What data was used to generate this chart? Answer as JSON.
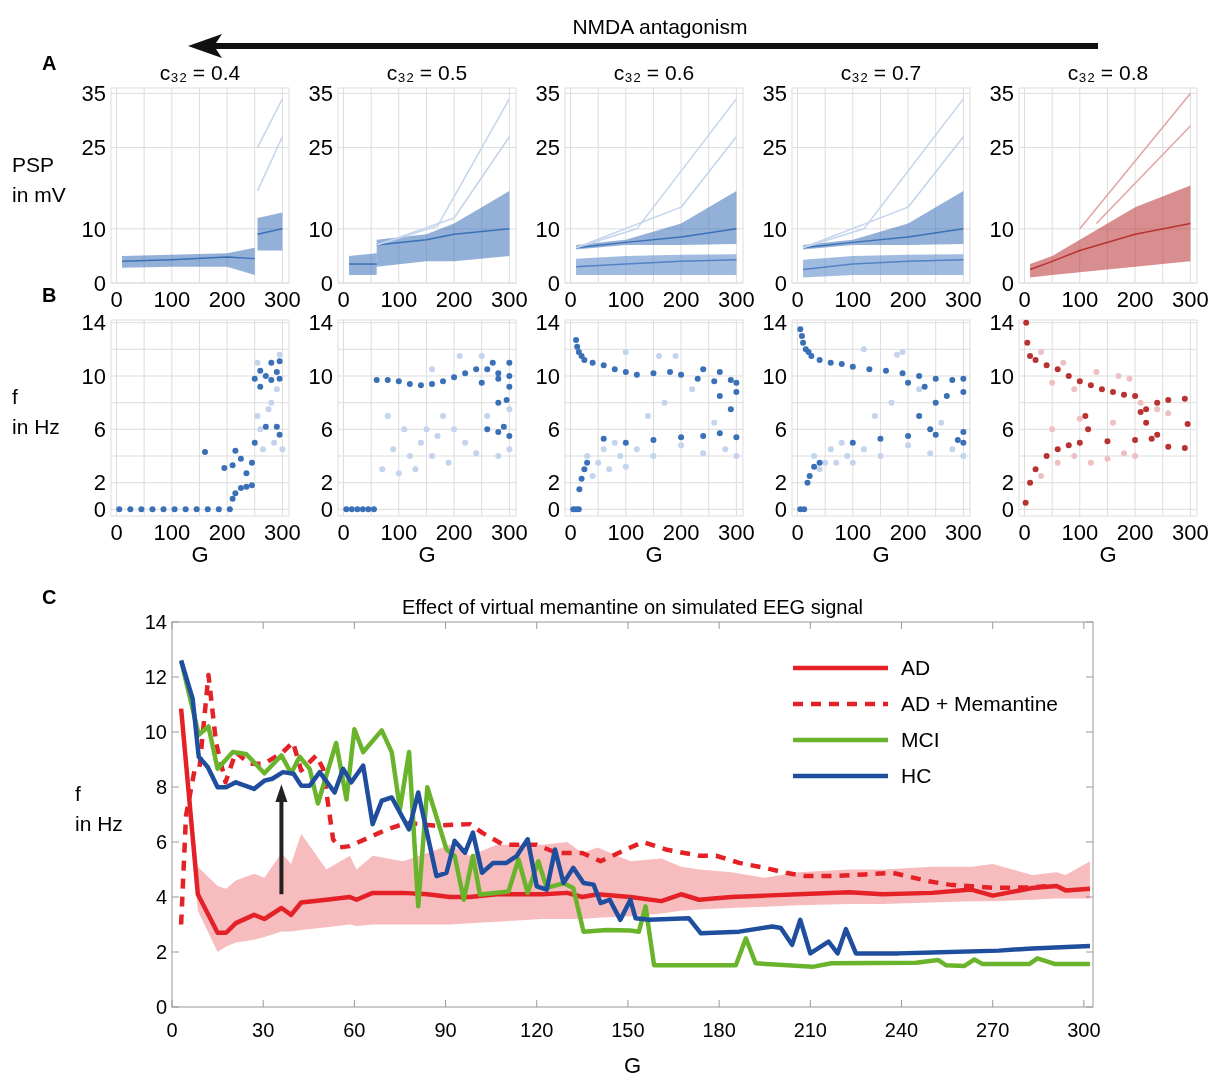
{
  "chart_data": [
    {
      "type": "line",
      "title": "c₃₂ = 0.4",
      "ylabel": "PSP in mV",
      "annotations": [
        "A",
        "NMDA antagonism"
      ],
      "xlim": [
        -10,
        312
      ],
      "ylim": [
        0,
        36
      ],
      "xticks": [
        0,
        {
          "value": 50,
          "label": null
        },
        100,
        {
          "value": 150,
          "label": null
        },
        200,
        {
          "value": 250,
          "label": null
        },
        300
      ],
      "yticks": [
        0,
        10,
        25,
        35
      ],
      "grid": true,
      "series": [
        {
          "color": "#3a70b8",
          "x": [
            10,
            100,
            200,
            250
          ],
          "values": [
            4,
            4.3,
            4.8,
            4.5
          ],
          "lower": [
            2.8,
            3,
            3,
            1.5
          ],
          "upper": [
            5,
            5.2,
            5.5,
            6.5
          ]
        },
        {
          "color": "#3a70b8",
          "x": [
            255,
            300
          ],
          "values": [
            9,
            10
          ],
          "lower": [
            6,
            6
          ],
          "upper": [
            12,
            13
          ]
        },
        {
          "color": "#c3d4ec",
          "x": [
            255,
            300
          ],
          "values": [
            25,
            34
          ]
        },
        {
          "color": "#c3d4ec",
          "x": [
            255,
            300
          ],
          "values": [
            17,
            27
          ]
        }
      ]
    },
    {
      "type": "line",
      "title": "c₃₂ = 0.5",
      "xlim": [
        -10,
        312
      ],
      "ylim": [
        0,
        36
      ],
      "xticks": [
        0,
        {
          "value": 50,
          "label": null
        },
        100,
        {
          "value": 150,
          "label": null
        },
        200,
        {
          "value": 250,
          "label": null
        },
        300
      ],
      "yticks": [
        0,
        10,
        25,
        35
      ],
      "grid": true,
      "series": [
        {
          "color": "#3a70b8",
          "x": [
            10,
            60
          ],
          "values": [
            3.5,
            3.5
          ],
          "lower": [
            1.5,
            1.5
          ],
          "upper": [
            5,
            5.5
          ]
        },
        {
          "color": "#3a70b8",
          "x": [
            60,
            150,
            200,
            300
          ],
          "values": [
            7,
            8,
            9,
            10
          ],
          "lower": [
            3,
            4,
            4,
            5
          ],
          "upper": [
            8,
            9,
            11,
            17
          ]
        },
        {
          "color": "#c3d4ec",
          "x": [
            60,
            170,
            300
          ],
          "values": [
            7,
            10.5,
            34
          ]
        },
        {
          "color": "#c3d4ec",
          "x": [
            60,
            200,
            300
          ],
          "values": [
            7,
            12,
            27
          ]
        }
      ]
    },
    {
      "type": "line",
      "title": "c₃₂ = 0.6",
      "xlim": [
        -10,
        312
      ],
      "ylim": [
        0,
        36
      ],
      "xticks": [
        0,
        {
          "value": 50,
          "label": null
        },
        100,
        {
          "value": 150,
          "label": null
        },
        200,
        {
          "value": 250,
          "label": null
        },
        300
      ],
      "yticks": [
        0,
        10,
        25,
        35
      ],
      "grid": true,
      "series": [
        {
          "color": "#3a70b8",
          "x": [
            10,
            100,
            200,
            300
          ],
          "values": [
            6.5,
            7.5,
            8.5,
            10
          ],
          "lower": [
            6.2,
            7,
            7,
            7.2
          ],
          "upper": [
            7,
            8,
            11,
            17
          ]
        },
        {
          "color": "#5283c6",
          "x": [
            10,
            100,
            200,
            300
          ],
          "values": [
            3,
            3.5,
            4,
            4.3
          ],
          "lower": [
            1.5,
            1.5,
            1.5,
            1.5
          ],
          "upper": [
            4.5,
            5,
            5.2,
            5.3
          ]
        },
        {
          "color": "#c3d4ec",
          "x": [
            10,
            120,
            300
          ],
          "values": [
            6.5,
            10,
            34
          ]
        },
        {
          "color": "#c3d4ec",
          "x": [
            10,
            200,
            300
          ],
          "values": [
            6.5,
            14,
            27
          ]
        }
      ]
    },
    {
      "type": "line",
      "title": "c₃₂ = 0.7",
      "xlim": [
        -10,
        312
      ],
      "ylim": [
        0,
        36
      ],
      "xticks": [
        0,
        {
          "value": 50,
          "label": null
        },
        100,
        {
          "value": 150,
          "label": null
        },
        200,
        {
          "value": 250,
          "label": null
        },
        300
      ],
      "yticks": [
        0,
        10,
        25,
        35
      ],
      "grid": true,
      "series": [
        {
          "color": "#3a70b8",
          "x": [
            10,
            100,
            200,
            300
          ],
          "values": [
            6.5,
            7.5,
            8.5,
            10
          ],
          "lower": [
            6.2,
            7,
            7,
            7.2
          ],
          "upper": [
            7,
            8,
            11,
            17
          ]
        },
        {
          "color": "#5283c6",
          "x": [
            10,
            100,
            200,
            300
          ],
          "values": [
            2.5,
            3.5,
            4,
            4.3
          ],
          "lower": [
            1,
            1.5,
            1.5,
            1.5
          ],
          "upper": [
            4.3,
            5,
            5.2,
            5.3
          ]
        },
        {
          "color": "#c3d4ec",
          "x": [
            10,
            120,
            300
          ],
          "values": [
            6.5,
            10,
            34
          ]
        },
        {
          "color": "#c3d4ec",
          "x": [
            10,
            200,
            300
          ],
          "values": [
            6.5,
            14,
            27
          ]
        }
      ]
    },
    {
      "type": "line",
      "title": "c₃₂ = 0.8",
      "xlim": [
        -10,
        312
      ],
      "ylim": [
        0,
        36
      ],
      "xticks": [
        0,
        {
          "value": 50,
          "label": null
        },
        100,
        {
          "value": 150,
          "label": null
        },
        200,
        {
          "value": 250,
          "label": null
        },
        300
      ],
      "yticks": [
        0,
        10,
        25,
        35
      ],
      "grid": true,
      "series": [
        {
          "color": "#b83232",
          "x": [
            10,
            50,
            100,
            200,
            300
          ],
          "values": [
            2.5,
            4,
            6,
            9,
            11
          ],
          "lower": [
            1,
            1.5,
            2,
            3,
            4
          ],
          "upper": [
            3.5,
            5,
            8,
            14,
            18
          ]
        },
        {
          "color": "#e2a3a3",
          "x": [
            100,
            300
          ],
          "values": [
            10,
            35
          ]
        },
        {
          "color": "#e2a3a3",
          "x": [
            130,
            300
          ],
          "values": [
            11,
            29
          ]
        }
      ]
    },
    {
      "type": "scatter",
      "xlabel": "G",
      "ylabel": "f in Hz",
      "annotations": [
        "B"
      ],
      "xlim": [
        -10,
        312
      ],
      "ylim": [
        -0.5,
        14.2
      ],
      "xticks": [
        0,
        {
          "value": 50,
          "label": null
        },
        100,
        {
          "value": 150,
          "label": null
        },
        200,
        {
          "value": 250,
          "label": null
        },
        300
      ],
      "yticks": [
        0,
        2,
        {
          "value": 4,
          "label": null
        },
        6,
        {
          "value": 8,
          "label": null
        },
        10,
        {
          "value": 12,
          "label": null
        },
        14
      ],
      "grid": true,
      "series": [
        {
          "color": "#c3d4ec",
          "x": [
            255,
            255,
            265,
            275,
            285,
            295,
            300,
            260,
            280,
            290
          ],
          "values": [
            11,
            7,
            4.5,
            7.5,
            5,
            11.6,
            4.5,
            6,
            8,
            9
          ]
        },
        {
          "color": "#3a70b8",
          "x": [
            5,
            25,
            45,
            65,
            85,
            105,
            125,
            145,
            165,
            185,
            205,
            160,
            195,
            210,
            210,
            215,
            215,
            225,
            225,
            235,
            235,
            245,
            245,
            250,
            250,
            260,
            260,
            270,
            270,
            280,
            280,
            290,
            290,
            295,
            295,
            295
          ],
          "values": [
            0,
            0,
            0,
            0,
            0,
            0,
            0,
            0,
            0,
            0,
            0,
            4.3,
            3.1,
            0.8,
            3.3,
            1.2,
            4.4,
            1.6,
            3.8,
            1.7,
            2.7,
            1.8,
            3.5,
            5,
            9.8,
            9.2,
            10.4,
            10,
            6.2,
            9.7,
            11,
            10.3,
            6.2,
            9.8,
            5.6,
            11.1
          ]
        }
      ]
    },
    {
      "type": "scatter",
      "xlabel": "G",
      "xlim": [
        -10,
        312
      ],
      "ylim": [
        -0.5,
        14.2
      ],
      "xticks": [
        0,
        {
          "value": 50,
          "label": null
        },
        100,
        {
          "value": 150,
          "label": null
        },
        200,
        {
          "value": 250,
          "label": null
        },
        300
      ],
      "yticks": [
        0,
        2,
        {
          "value": 4,
          "label": null
        },
        6,
        {
          "value": 8,
          "label": null
        },
        10,
        {
          "value": 12,
          "label": null
        },
        14
      ],
      "grid": true,
      "series": [
        {
          "color": "#c3d4ec",
          "x": [
            70,
            80,
            90,
            100,
            110,
            120,
            130,
            140,
            150,
            160,
            170,
            180,
            190,
            200,
            210,
            220,
            240,
            260,
            280,
            300,
            300,
            160,
            250
          ],
          "values": [
            3,
            7,
            4.5,
            2.7,
            6,
            4,
            3,
            5,
            6,
            4,
            5.5,
            7,
            3.5,
            6,
            11.5,
            5,
            4.2,
            7,
            4,
            4.5,
            7.5,
            10.5,
            11.5
          ]
        },
        {
          "color": "#3a70b8",
          "x": [
            5,
            15,
            25,
            35,
            45,
            55,
            60,
            80,
            100,
            120,
            140,
            160,
            180,
            200,
            220,
            240,
            260,
            280,
            300,
            250,
            280,
            300,
            300,
            270,
            280,
            295,
            260,
            280,
            300,
            290
          ],
          "values": [
            0,
            0,
            0,
            0,
            0,
            0,
            9.7,
            9.7,
            9.6,
            9.4,
            9.3,
            9.4,
            9.6,
            9.9,
            10.2,
            10.5,
            10.5,
            10.2,
            10,
            9.5,
            9.8,
            9.2,
            11,
            11,
            8,
            8.2,
            6,
            5.8,
            5.5,
            6.2
          ]
        }
      ]
    },
    {
      "type": "scatter",
      "xlabel": "G",
      "xlim": [
        -10,
        312
      ],
      "ylim": [
        -0.5,
        14.2
      ],
      "xticks": [
        0,
        {
          "value": 50,
          "label": null
        },
        100,
        {
          "value": 150,
          "label": null
        },
        200,
        {
          "value": 250,
          "label": null
        },
        300
      ],
      "yticks": [
        0,
        2,
        {
          "value": 4,
          "label": null
        },
        6,
        {
          "value": 8,
          "label": null
        },
        10,
        {
          "value": 12,
          "label": null
        },
        14
      ],
      "grid": true,
      "series": [
        {
          "color": "#c3d4ec",
          "x": [
            30,
            40,
            50,
            60,
            70,
            80,
            90,
            100,
            120,
            140,
            150,
            170,
            190,
            200,
            220,
            240,
            260,
            280,
            300,
            100,
            160
          ],
          "values": [
            4,
            2.5,
            3.5,
            4.5,
            3,
            5,
            4,
            3.2,
            4.5,
            7,
            4,
            8,
            11.5,
            4.8,
            9,
            4.2,
            6.5,
            4.5,
            4,
            11.8,
            11.5
          ]
        },
        {
          "color": "#3a70b8",
          "x": [
            5,
            10,
            15,
            10,
            12,
            15,
            20,
            25,
            40,
            60,
            80,
            100,
            120,
            150,
            180,
            200,
            230,
            260,
            290,
            240,
            270,
            300,
            270,
            290,
            300,
            16,
            20,
            25,
            30,
            100,
            150,
            200,
            240,
            270,
            300,
            60
          ],
          "values": [
            0,
            0,
            0,
            12.7,
            12.2,
            11.8,
            11.5,
            11.2,
            11,
            10.8,
            10.5,
            10.3,
            10.1,
            10.2,
            10.3,
            10.1,
            9.8,
            9.6,
            9.7,
            10.5,
            10.3,
            9.5,
            8.5,
            7.5,
            8.8,
            1.5,
            2.3,
            3,
            3.5,
            5,
            5.2,
            5.4,
            5.5,
            5.7,
            5.4,
            5.3
          ]
        }
      ]
    },
    {
      "type": "scatter",
      "xlabel": "G",
      "xlim": [
        -10,
        312
      ],
      "ylim": [
        -0.5,
        14.2
      ],
      "xticks": [
        0,
        {
          "value": 50,
          "label": null
        },
        100,
        {
          "value": 150,
          "label": null
        },
        200,
        {
          "value": 250,
          "label": null
        },
        300
      ],
      "yticks": [
        0,
        2,
        {
          "value": 4,
          "label": null
        },
        6,
        {
          "value": 8,
          "label": null
        },
        10,
        {
          "value": 12,
          "label": null
        },
        14
      ],
      "grid": true,
      "series": [
        {
          "color": "#c3d4ec",
          "x": [
            30,
            40,
            50,
            60,
            70,
            80,
            90,
            100,
            120,
            140,
            150,
            170,
            190,
            200,
            220,
            240,
            260,
            280,
            300,
            120,
            180
          ],
          "values": [
            4,
            3,
            3.5,
            4.5,
            3.5,
            5,
            4,
            3.5,
            4.5,
            7,
            4,
            8,
            11.8,
            4.8,
            9,
            4.2,
            6.5,
            4.5,
            4,
            12,
            11.6
          ]
        },
        {
          "color": "#3a70b8",
          "x": [
            5,
            12,
            5,
            8,
            10,
            15,
            20,
            25,
            40,
            60,
            80,
            100,
            130,
            160,
            190,
            220,
            250,
            280,
            300,
            200,
            230,
            250,
            270,
            300,
            220,
            240,
            18,
            22,
            30,
            40,
            100,
            150,
            200,
            250,
            290,
            300,
            300
          ],
          "values": [
            0,
            0,
            13.5,
            13,
            12.5,
            12,
            11.8,
            11.5,
            11.2,
            11,
            10.9,
            10.7,
            10.5,
            10.4,
            10.2,
            10,
            9.8,
            9.7,
            9.8,
            9.5,
            9.2,
            8,
            8.5,
            8.8,
            7,
            6,
            2,
            2.5,
            3.2,
            3.5,
            5,
            5.3,
            5.5,
            5.6,
            5.2,
            5.8,
            5
          ]
        }
      ]
    },
    {
      "type": "scatter",
      "xlabel": "G",
      "xlim": [
        -10,
        312
      ],
      "ylim": [
        -0.5,
        14.2
      ],
      "xticks": [
        0,
        {
          "value": 50,
          "label": null
        },
        100,
        {
          "value": 150,
          "label": null
        },
        200,
        {
          "value": 250,
          "label": null
        },
        300
      ],
      "yticks": [
        0,
        2,
        {
          "value": 4,
          "label": null
        },
        6,
        {
          "value": 8,
          "label": null
        },
        10,
        {
          "value": 12,
          "label": null
        },
        14
      ],
      "grid": true,
      "series": [
        {
          "color": "#edc1c1",
          "x": [
            30,
            50,
            70,
            90,
            130,
            170,
            190,
            210,
            240,
            260,
            30,
            60,
            90,
            120,
            150,
            180,
            200,
            100,
            160,
            50
          ],
          "values": [
            11.8,
            9.5,
            11,
            9,
            10.3,
            10,
            9.8,
            8,
            7.5,
            7.2,
            2.5,
            3.5,
            4,
            3.5,
            3.8,
            4.2,
            4,
            6.8,
            6.5,
            6
          ]
        },
        {
          "color": "#b83232",
          "x": [
            2,
            3,
            5,
            10,
            20,
            40,
            60,
            80,
            100,
            120,
            140,
            160,
            180,
            200,
            220,
            240,
            260,
            290,
            110,
            115,
            10,
            20,
            40,
            60,
            80,
            100,
            150,
            200,
            230,
            240,
            260,
            290,
            295,
            210,
            220
          ],
          "values": [
            0.5,
            14,
            12.5,
            11.5,
            11.2,
            10.8,
            10.5,
            10,
            9.6,
            9.3,
            9,
            8.8,
            8.6,
            8.5,
            7.5,
            8,
            8.2,
            8.3,
            7,
            6,
            2,
            3,
            4,
            4.5,
            4.8,
            5,
            5.1,
            5.2,
            5.3,
            5.6,
            4.7,
            4.6,
            6.4,
            7.3,
            6.5
          ]
        }
      ]
    },
    {
      "type": "line",
      "title": "Effect of virtual memantine on simulated EEG signal",
      "xlabel": "G",
      "ylabel": "f in Hz",
      "annotations": [
        "C"
      ],
      "xlim": [
        0,
        303
      ],
      "ylim": [
        0,
        14
      ],
      "xticks": [
        0,
        30,
        60,
        90,
        120,
        150,
        180,
        210,
        240,
        270,
        300
      ],
      "yticks": [
        0,
        2,
        4,
        6,
        8,
        10,
        12,
        14
      ],
      "grid": false,
      "legend": "top right",
      "series": [
        {
          "name": "AD",
          "color": "#e42127",
          "x": [
            3,
            8.5,
            15,
            17.8,
            21,
            27,
            30.4,
            36,
            39.2,
            42.5,
            50.8,
            58.5,
            60.7,
            66,
            76,
            84,
            91.4,
            98,
            106.8,
            122,
            130,
            135,
            140,
            150.8,
            161,
            167.5,
            173.4,
            184,
            195,
            206,
            222.8,
            233.8,
            250,
            263,
            270,
            283,
            291,
            294,
            302
          ],
          "values": [
            10.85,
            4.1,
            2.7,
            2.7,
            3.05,
            3.35,
            3.2,
            3.6,
            3.35,
            3.8,
            3.9,
            4,
            3.9,
            4.15,
            4.15,
            4.1,
            4,
            4,
            4.1,
            4.1,
            4.15,
            4,
            4.1,
            4,
            3.85,
            4.1,
            3.9,
            4,
            4.05,
            4.1,
            4.17,
            4.1,
            4.15,
            4.27,
            4.05,
            4.33,
            4.4,
            4.24,
            4.3
          ],
          "lower": [
            10.85,
            3.5,
            2,
            2.2,
            2.35,
            2.45,
            2.55,
            2.75,
            2.75,
            2.8,
            2.9,
            3,
            2.95,
            3,
            3,
            3,
            3,
            3.05,
            3.1,
            3.2,
            3.2,
            3.2,
            3.25,
            3.3,
            3.4,
            3.5,
            3.55,
            3.6,
            3.65,
            3.7,
            3.75,
            3.75,
            3.8,
            3.85,
            3.85,
            3.9,
            3.95,
            3.95,
            3.95
          ],
          "upper": [
            10.85,
            5.1,
            4.4,
            4.3,
            4.6,
            4.85,
            4.7,
            5.6,
            5.2,
            6.3,
            5,
            5.5,
            5,
            5.5,
            5.3,
            5.6,
            5.9,
            5.5,
            5.9,
            5.9,
            6,
            5.6,
            5.8,
            5.3,
            5.4,
            5.1,
            5,
            4.9,
            4.7,
            4.9,
            5,
            5,
            5.1,
            5.1,
            5.2,
            4.8,
            4.9,
            4.8,
            5.3
          ]
        },
        {
          "name": "AD + Memantine",
          "color": "#e42127",
          "line_style": "dashed",
          "x": [
            3,
            4.6,
            7.4,
            9,
            12,
            14.5,
            17.6,
            21,
            25.5,
            30.4,
            36.5,
            39.8,
            42.5,
            47.5,
            49.7,
            53,
            55,
            58.5,
            69.5,
            77,
            86,
            98,
            102,
            109,
            120,
            126.6,
            135,
            141,
            150.8,
            155,
            162.4,
            173.4,
            179,
            186.6,
            195,
            202,
            208.5,
            217,
            228,
            237,
            249,
            255.7,
            263,
            271,
            283,
            289
          ],
          "values": [
            3,
            6.95,
            8.6,
            8.66,
            12.07,
            9.6,
            8.17,
            9.27,
            8.85,
            8.85,
            9.27,
            9.63,
            8.6,
            9.15,
            8.66,
            6.1,
            5.8,
            5.85,
            6.4,
            6.7,
            6.6,
            6.65,
            6.34,
            5.9,
            5.9,
            5.6,
            5.6,
            5.3,
            5.8,
            6,
            5.73,
            5.5,
            5.5,
            5.24,
            5.06,
            4.88,
            4.76,
            4.76,
            4.82,
            4.88,
            4.57,
            4.45,
            4.39,
            4.33,
            4.35,
            4.4
          ]
        },
        {
          "name": "MCI",
          "color": "#6ab42d",
          "x": [
            3,
            8.8,
            12,
            15,
            20,
            24.4,
            30.4,
            36,
            39.2,
            42,
            45.3,
            48,
            54,
            57.4,
            60,
            62.9,
            69,
            72.3,
            75,
            78,
            81,
            84,
            90.3,
            93,
            96,
            99,
            101.3,
            110.7,
            114,
            117,
            120.5,
            123.3,
            128.8,
            132,
            135.4,
            143,
            150.8,
            153.6,
            155.8,
            158.6,
            185.5,
            188.8,
            192,
            210.7,
            217,
            244.8,
            252,
            254.6,
            260.6,
            264,
            266.7,
            282,
            284.7,
            290.6,
            302
          ],
          "values": [
            12.6,
            9.9,
            10.2,
            8.66,
            9.27,
            9.2,
            8.5,
            9.15,
            8.5,
            9.1,
            8.66,
            7.4,
            9.6,
            7.55,
            10.1,
            9.27,
            10.06,
            9.27,
            7.2,
            9.27,
            3.66,
            7.99,
            5.73,
            5.49,
            3.9,
            5.49,
            4.09,
            4.2,
            5.37,
            4.15,
            5.3,
            4.33,
            4.5,
            4.33,
            2.74,
            2.8,
            2.78,
            2.74,
            3.66,
            1.52,
            1.52,
            2.5,
            1.59,
            1.46,
            1.59,
            1.61,
            1.71,
            1.52,
            1.49,
            1.73,
            1.56,
            1.56,
            1.77,
            1.56,
            1.56
          ]
        },
        {
          "name": "HC",
          "color": "#1f4e9e",
          "x": [
            3,
            6.8,
            8.8,
            11.8,
            15,
            17.8,
            21,
            27,
            30.4,
            33,
            36.5,
            40,
            42.5,
            45.3,
            48.6,
            53.5,
            56.3,
            59,
            62.9,
            66,
            69,
            72.3,
            78,
            81,
            87,
            90.3,
            93,
            96.4,
            99,
            102,
            105.7,
            110,
            113.4,
            117,
            120,
            123.3,
            126,
            128.8,
            132,
            135.4,
            138.7,
            141,
            144,
            147.5,
            150.8,
            152.5,
            157,
            170,
            174,
            186.6,
            197.5,
            200.3,
            204,
            206.7,
            210,
            216,
            219,
            221.7,
            225,
            239,
            250,
            272,
            283,
            302
          ],
          "values": [
            12.6,
            11.2,
            9.1,
            8.72,
            7.99,
            7.99,
            8.17,
            7.93,
            8.23,
            8.3,
            8.54,
            8.48,
            8.05,
            8.05,
            8.54,
            7.8,
            8.66,
            8.17,
            8.78,
            6.65,
            7.5,
            7.62,
            6.46,
            7.8,
            4.76,
            4.88,
            6.04,
            5.61,
            6.34,
            4.88,
            5.24,
            5.24,
            5.49,
            6.1,
            4.39,
            4.27,
            5.73,
            4.51,
            5.06,
            4.51,
            4.45,
            3.78,
            3.9,
            3.17,
            3.9,
            3.23,
            3.17,
            3.23,
            2.68,
            2.74,
            2.93,
            2.87,
            2.26,
            3.17,
            1.95,
            2.38,
            1.95,
            2.83,
            1.95,
            1.95,
            1.98,
            2.05,
            2.13,
            2.22
          ]
        }
      ]
    }
  ]
}
